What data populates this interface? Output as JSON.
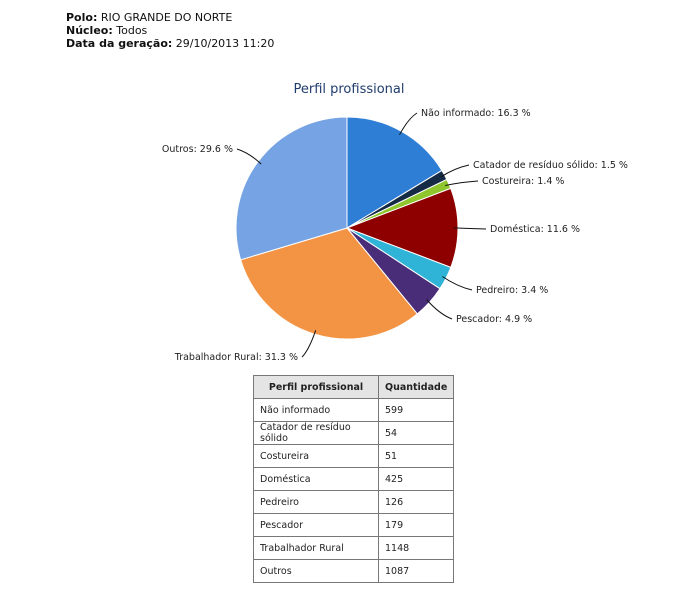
{
  "header": {
    "polo_label": "Polo:",
    "polo_value": "RIO GRANDE DO NORTE",
    "nucleo_label": "Núcleo:",
    "nucleo_value": "Todos",
    "data_label": "Data da geração:",
    "data_value": "29/10/2013 11:20"
  },
  "chart_data": {
    "type": "pie",
    "title": "Perfil profissional",
    "slices": [
      {
        "label": "Não informado",
        "value": 599,
        "percent_label": "16.3 %",
        "color": "#2e7ed6"
      },
      {
        "label": "Catador de resíduo sólido",
        "value": 54,
        "percent_label": "1.5 %",
        "color": "#152a45"
      },
      {
        "label": "Costureira",
        "value": 51,
        "percent_label": "1.4 %",
        "color": "#8fc62e"
      },
      {
        "label": "Doméstica",
        "value": 425,
        "percent_label": "11.6 %",
        "color": "#8e0000"
      },
      {
        "label": "Pedreiro",
        "value": 126,
        "percent_label": "3.4 %",
        "color": "#2fb3d6"
      },
      {
        "label": "Pescador",
        "value": 179,
        "percent_label": "4.9 %",
        "color": "#4a2d78"
      },
      {
        "label": "Trabalhador Rural",
        "value": 1148,
        "percent_label": "31.3 %",
        "color": "#f39445"
      },
      {
        "label": "Outros",
        "value": 1087,
        "percent_label": "29.6 %",
        "color": "#75a3e4"
      }
    ]
  },
  "table": {
    "headers": [
      "Perfil profissional",
      "Quantidade"
    ],
    "rows": [
      [
        "Não informado",
        "599"
      ],
      [
        "Catador de resíduo sólido",
        "54"
      ],
      [
        "Costureira",
        "51"
      ],
      [
        "Doméstica",
        "425"
      ],
      [
        "Pedreiro",
        "126"
      ],
      [
        "Pescador",
        "179"
      ],
      [
        "Trabalhador Rural",
        "1148"
      ],
      [
        "Outros",
        "1087"
      ]
    ]
  }
}
